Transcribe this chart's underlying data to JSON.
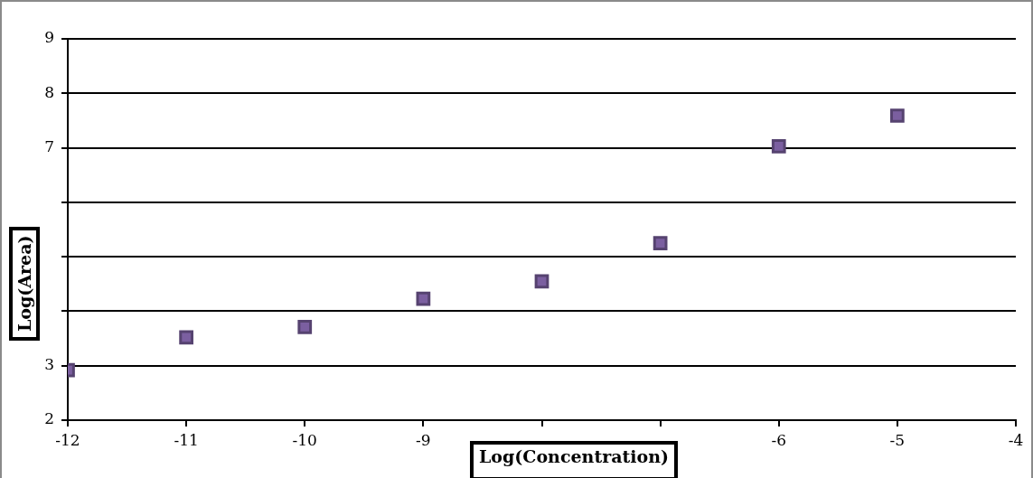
{
  "chart_data": {
    "type": "scatter",
    "xlabel": "Log(Concentration)",
    "ylabel": "Log(Area)",
    "x": [
      -12,
      -11,
      -10,
      -9,
      -8,
      -7,
      -6,
      -5
    ],
    "series": [
      {
        "color": "#7b5fa0",
        "values": [
          2.92,
          3.52,
          3.71,
          4.23,
          4.55,
          5.25,
          7.03,
          7.59
        ]
      }
    ],
    "xlim": [
      -12,
      -4
    ],
    "xticks": [
      -12,
      -11,
      -10,
      -9,
      {
        "value": -8,
        "label": null
      },
      {
        "value": -7,
        "label": null
      },
      -6,
      -5,
      -4
    ],
    "ylim": [
      2,
      9
    ],
    "yticks": [
      2,
      3,
      {
        "value": 4,
        "label": null
      },
      {
        "value": 5,
        "label": null
      },
      {
        "value": 6,
        "label": null
      },
      7,
      8,
      9
    ],
    "grid": "y",
    "legend": false,
    "marker": "square"
  }
}
